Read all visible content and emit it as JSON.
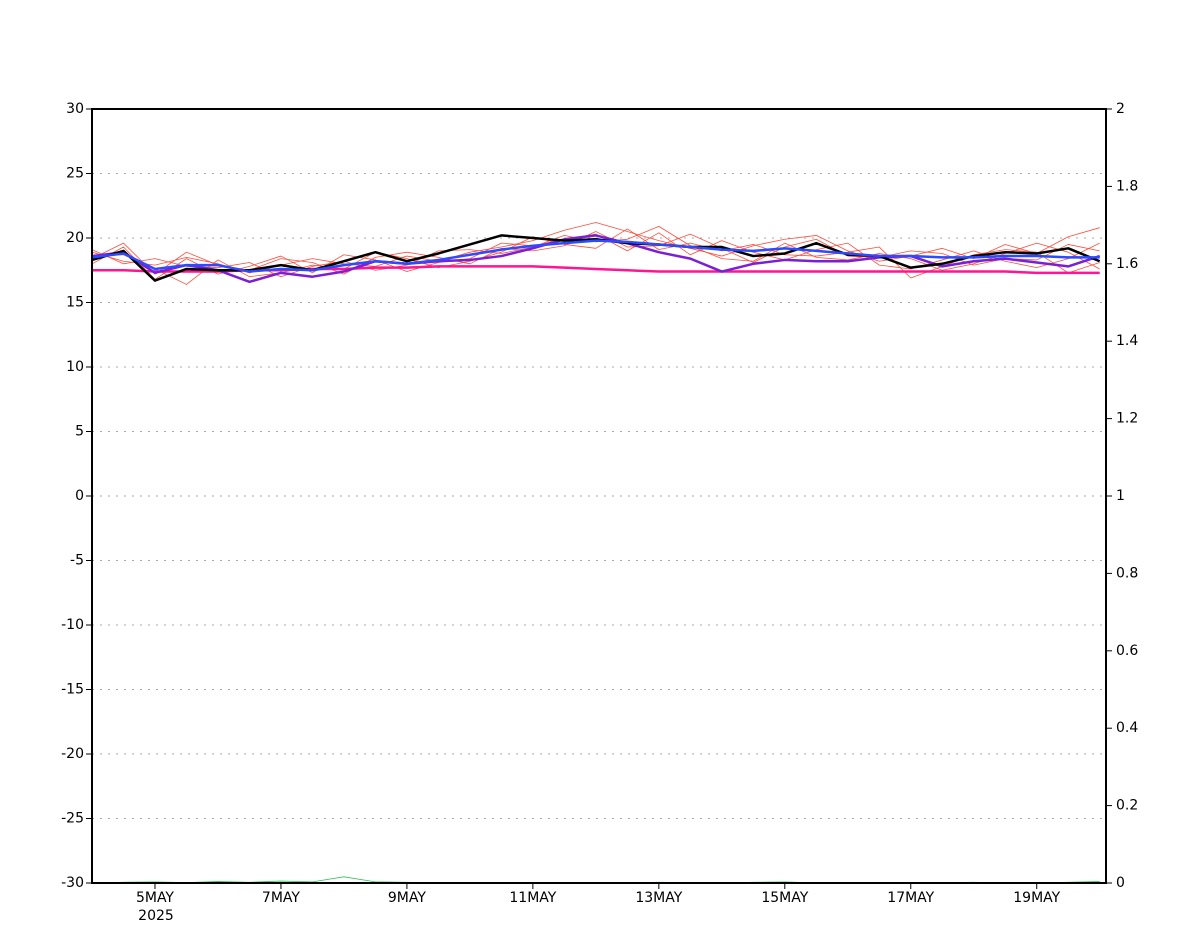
{
  "chart_data": {
    "type": "line",
    "x": [
      4,
      4.5,
      5,
      5.5,
      6,
      6.5,
      7,
      7.5,
      8,
      8.5,
      9,
      9.5,
      10,
      10.5,
      11,
      11.5,
      12,
      12.5,
      13,
      13.5,
      14,
      14.5,
      15,
      15.5,
      16,
      16.5,
      17,
      17.5,
      18,
      18.5,
      19,
      19.5,
      20
    ],
    "xlim": [
      4,
      20.1
    ],
    "xticks": [
      {
        "value": 5,
        "label": "5MAY"
      },
      {
        "value": 7,
        "label": "7MAY"
      },
      {
        "value": 9,
        "label": "9MAY"
      },
      {
        "value": 11,
        "label": "11MAY"
      },
      {
        "value": 13,
        "label": "13MAY"
      },
      {
        "value": 15,
        "label": "15MAY"
      },
      {
        "value": 17,
        "label": "17MAY"
      },
      {
        "value": 19,
        "label": "19MAY"
      }
    ],
    "x_sublabel": "2025",
    "ylim": [
      -30,
      30
    ],
    "yticks": [
      -30,
      -25,
      -20,
      -15,
      -10,
      -5,
      0,
      5,
      10,
      15,
      20,
      25,
      30
    ],
    "y2lim": [
      0,
      2
    ],
    "y2ticks": [
      0,
      0.2,
      0.4,
      0.6,
      0.8,
      1,
      1.2,
      1.4,
      1.6,
      1.8,
      2
    ],
    "grid": true,
    "series": [
      {
        "color": "#ff4d3d",
        "width": 0.8,
        "values": [
          18.9,
          18.2,
          17.9,
          18.5,
          18.0,
          17.3,
          17.9,
          18.4,
          18.0,
          17.8,
          18.6,
          18.2,
          18.9,
          19.3,
          19.8,
          20.6,
          21.2,
          20.5,
          19.8,
          19.2,
          18.6,
          19.4,
          19.9,
          20.2,
          19.0,
          18.2,
          18.6,
          19.2,
          18.4,
          19.5,
          18.8,
          20.1,
          20.8
        ]
      },
      {
        "color": "#ff4d3d",
        "width": 0.8,
        "values": [
          18.0,
          19.3,
          16.8,
          18.4,
          17.2,
          17.8,
          18.6,
          17.3,
          18.7,
          18.3,
          17.4,
          18.1,
          18.4,
          19.6,
          19.4,
          19.9,
          20.3,
          19.0,
          20.4,
          18.7,
          19.8,
          18.9,
          18.3,
          19.1,
          19.6,
          17.9,
          17.6,
          18.3,
          19.0,
          18.2,
          17.7,
          18.4,
          19.6
        ]
      },
      {
        "color": "#ff4d3d",
        "width": 0.8,
        "values": [
          18.6,
          18.7,
          17.6,
          16.4,
          18.3,
          17.0,
          17.3,
          17.9,
          17.6,
          18.9,
          18.4,
          17.7,
          18.2,
          18.9,
          20.1,
          19.5,
          19.2,
          20.7,
          19.1,
          19.6,
          19.0,
          19.5,
          18.7,
          18.6,
          18.9,
          19.3,
          16.9,
          17.8,
          18.7,
          19.1,
          18.9,
          17.3,
          18.1
        ]
      },
      {
        "color": "#ff4d3d",
        "width": 0.8,
        "values": [
          19.1,
          18.0,
          18.4,
          17.8,
          17.7,
          18.1,
          17.0,
          17.8,
          18.2,
          17.5,
          17.9,
          19.0,
          19.1,
          18.8,
          19.3,
          20.2,
          19.7,
          19.9,
          20.9,
          19.4,
          18.4,
          18.2,
          19.6,
          18.5,
          18.3,
          18.8,
          18.4,
          17.5,
          18.0,
          18.8,
          19.6,
          18.9,
          17.6
        ]
      },
      {
        "color": "#ff4d3d",
        "width": 0.8,
        "values": [
          18.4,
          19.6,
          17.2,
          18.9,
          17.9,
          17.5,
          18.4,
          18.1,
          17.2,
          18.5,
          18.9,
          18.5,
          18.0,
          19.2,
          19.0,
          19.4,
          20.5,
          19.3,
          19.4,
          20.3,
          19.2,
          18.1,
          19.3,
          19.9,
          18.6,
          18.5,
          19.0,
          18.8,
          17.9,
          18.4,
          18.3,
          19.5,
          19.0
        ]
      },
      {
        "color": "#ff1493",
        "width": 2.5,
        "values": [
          17.5,
          17.5,
          17.4,
          17.4,
          17.4,
          17.5,
          17.5,
          17.6,
          17.6,
          17.7,
          17.7,
          17.8,
          17.8,
          17.8,
          17.8,
          17.7,
          17.6,
          17.5,
          17.4,
          17.4,
          17.4,
          17.4,
          17.4,
          17.4,
          17.4,
          17.4,
          17.4,
          17.4,
          17.4,
          17.4,
          17.3,
          17.3,
          17.3
        ]
      },
      {
        "color": "#7b1fd6",
        "width": 2.5,
        "values": [
          18.6,
          18.9,
          17.3,
          17.9,
          17.5,
          16.6,
          17.3,
          17.0,
          17.4,
          18.2,
          18.0,
          18.2,
          18.3,
          18.6,
          19.2,
          19.9,
          20.2,
          19.6,
          18.9,
          18.4,
          17.4,
          18.0,
          18.3,
          18.2,
          18.2,
          18.5,
          18.6,
          17.8,
          18.2,
          18.4,
          18.1,
          17.8,
          18.6
        ]
      },
      {
        "color": "#000000",
        "width": 2.5,
        "values": [
          18.3,
          19.0,
          16.7,
          17.6,
          17.5,
          17.5,
          17.9,
          17.5,
          18.2,
          18.9,
          18.2,
          18.8,
          19.5,
          20.2,
          20.0,
          19.8,
          19.9,
          19.6,
          19.5,
          19.3,
          19.3,
          18.6,
          18.8,
          19.6,
          18.7,
          18.6,
          17.7,
          18.0,
          18.6,
          18.9,
          18.8,
          19.2,
          18.2
        ]
      },
      {
        "color": "#2a4bff",
        "width": 2.5,
        "values": [
          18.5,
          18.8,
          17.6,
          17.9,
          17.9,
          17.4,
          17.6,
          17.5,
          17.9,
          18.2,
          18.0,
          18.3,
          18.7,
          19.1,
          19.4,
          19.6,
          19.8,
          19.7,
          19.5,
          19.3,
          19.1,
          19.0,
          19.2,
          19.0,
          18.8,
          18.6,
          18.6,
          18.5,
          18.5,
          18.6,
          18.6,
          18.5,
          18.5
        ]
      },
      {
        "color": "#33c45a",
        "width": 0.8,
        "axis": "y2",
        "values": [
          0,
          0.002,
          0.003,
          0.001,
          0.004,
          0.002,
          0.005,
          0.003,
          0.016,
          0.003,
          0.002,
          0,
          0.001,
          0,
          0,
          0,
          0,
          0,
          0.002,
          0.001,
          0,
          0.002,
          0.003,
          0,
          0,
          0.001,
          0,
          0,
          0.002,
          0,
          0,
          0.002,
          0.004
        ]
      }
    ]
  }
}
